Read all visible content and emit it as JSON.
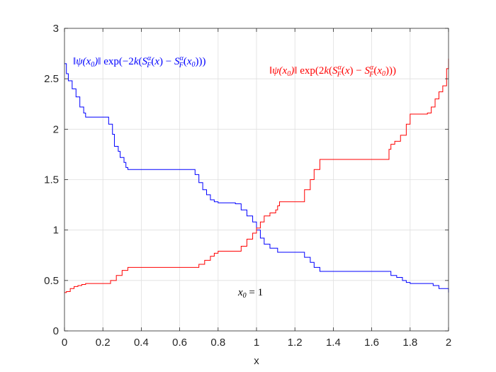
{
  "chart_data": {
    "type": "line",
    "xlabel": "x",
    "ylabel": "",
    "xlim": [
      0,
      2
    ],
    "ylim": [
      0,
      3
    ],
    "xticks": [
      "0",
      "0.2",
      "0.4",
      "0.6",
      "0.8",
      "1",
      "1.2",
      "1.4",
      "1.6",
      "1.8",
      "2"
    ],
    "yticks": [
      "0",
      "0.5",
      "1",
      "1.5",
      "2",
      "2.5",
      "3"
    ],
    "grid": true,
    "series": [
      {
        "name": "‖ψ(x₀)‖ exp(−2k(S_F^α(x) − S_F^α(x₀)))",
        "color": "#0000ff",
        "x": [
          0,
          0.01,
          0.02,
          0.04,
          0.06,
          0.08,
          0.1,
          0.11,
          0.22,
          0.23,
          0.25,
          0.26,
          0.28,
          0.29,
          0.31,
          0.32,
          0.33,
          0.67,
          0.68,
          0.7,
          0.72,
          0.74,
          0.76,
          0.78,
          0.8,
          0.89,
          0.92,
          0.95,
          0.98,
          1,
          1.02,
          1.04,
          1.07,
          1.11,
          1.22,
          1.25,
          1.28,
          1.3,
          1.33,
          1.67,
          1.7,
          1.73,
          1.76,
          1.78,
          1.8,
          1.89,
          1.92,
          1.95,
          2
        ],
        "y": [
          2.65,
          2.55,
          2.48,
          2.4,
          2.32,
          2.22,
          2.16,
          2.12,
          2.12,
          2.05,
          1.95,
          1.83,
          1.78,
          1.72,
          1.67,
          1.62,
          1.6,
          1.6,
          1.55,
          1.47,
          1.4,
          1.35,
          1.3,
          1.28,
          1.27,
          1.26,
          1.2,
          1.14,
          1.08,
          1.0,
          0.92,
          0.86,
          0.82,
          0.78,
          0.78,
          0.73,
          0.68,
          0.63,
          0.59,
          0.59,
          0.55,
          0.53,
          0.5,
          0.48,
          0.47,
          0.47,
          0.45,
          0.42,
          0.38
        ]
      },
      {
        "name": "‖ψ(x₀)‖ exp(2k(S_F^α(x) − S_F^α(x₀)))",
        "color": "#ff0000",
        "x": [
          0,
          0.01,
          0.03,
          0.05,
          0.07,
          0.09,
          0.11,
          0.22,
          0.24,
          0.27,
          0.3,
          0.33,
          0.67,
          0.7,
          0.73,
          0.76,
          0.78,
          0.8,
          0.89,
          0.92,
          0.95,
          0.98,
          1,
          1.02,
          1.04,
          1.07,
          1.1,
          1.11,
          1.12,
          1.22,
          1.25,
          1.28,
          1.3,
          1.33,
          1.67,
          1.69,
          1.7,
          1.72,
          1.75,
          1.78,
          1.8,
          1.89,
          1.91,
          1.93,
          1.95,
          1.97,
          1.99,
          2
        ],
        "y": [
          0.38,
          0.39,
          0.42,
          0.44,
          0.45,
          0.46,
          0.47,
          0.47,
          0.5,
          0.55,
          0.6,
          0.63,
          0.63,
          0.66,
          0.7,
          0.74,
          0.77,
          0.79,
          0.79,
          0.84,
          0.91,
          0.97,
          1.02,
          1.08,
          1.14,
          1.17,
          1.2,
          1.24,
          1.28,
          1.28,
          1.4,
          1.5,
          1.6,
          1.7,
          1.7,
          1.8,
          1.85,
          1.88,
          1.94,
          2.05,
          2.15,
          2.16,
          2.22,
          2.3,
          2.37,
          2.43,
          2.6,
          2.7
        ]
      }
    ],
    "annotations": [
      {
        "text": "‖ψ(x₀)‖ exp(−2k(S_F^α(x) − S_F^α(x₀)))",
        "color": "#0000ff"
      },
      {
        "text": "‖ψ(x₀)‖ exp(2k(S_F^α(x) − S_F^α(x₀)))",
        "color": "#ff0000"
      },
      {
        "text": "x₀ = 1",
        "color": "#000000"
      }
    ]
  }
}
